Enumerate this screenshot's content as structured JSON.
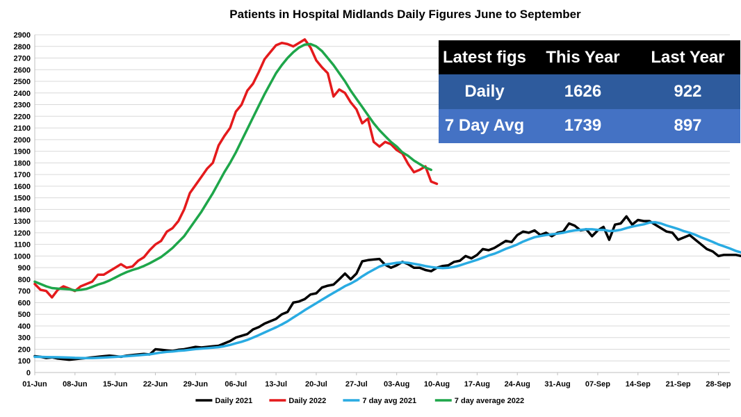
{
  "chart_data": {
    "type": "line",
    "title": "Patients in Hospital  Midlands Daily Figures June to September",
    "ylim": [
      0,
      2900
    ],
    "y_ticks": [
      0,
      100,
      200,
      300,
      400,
      500,
      600,
      700,
      800,
      900,
      1000,
      1100,
      1200,
      1300,
      1400,
      1500,
      1600,
      1700,
      1800,
      1900,
      2000,
      2100,
      2200,
      2300,
      2400,
      2500,
      2600,
      2700,
      2800,
      2900
    ],
    "x_range": [
      0,
      121
    ],
    "x_ticks": [
      {
        "day": 0,
        "label": "01-Jun"
      },
      {
        "day": 7,
        "label": "08-Jun"
      },
      {
        "day": 14,
        "label": "15-Jun"
      },
      {
        "day": 21,
        "label": "22-Jun"
      },
      {
        "day": 28,
        "label": "29-Jun"
      },
      {
        "day": 35,
        "label": "06-Jul"
      },
      {
        "day": 42,
        "label": "13-Jul"
      },
      {
        "day": 49,
        "label": "20-Jul"
      },
      {
        "day": 56,
        "label": "27-Jul"
      },
      {
        "day": 63,
        "label": "03-Aug"
      },
      {
        "day": 70,
        "label": "10-Aug"
      },
      {
        "day": 77,
        "label": "17-Aug"
      },
      {
        "day": 84,
        "label": "24-Aug"
      },
      {
        "day": 91,
        "label": "31-Aug"
      },
      {
        "day": 98,
        "label": "07-Sep"
      },
      {
        "day": 105,
        "label": "14-Sep"
      },
      {
        "day": 112,
        "label": "21-Sep"
      },
      {
        "day": 119,
        "label": "28-Sep"
      }
    ],
    "grid": true,
    "legend_position": "bottom",
    "series": [
      {
        "name": "Daily 2021",
        "color": "#000000",
        "start_day": 0,
        "values": [
          140,
          135,
          125,
          130,
          120,
          115,
          110,
          115,
          120,
          125,
          130,
          135,
          140,
          145,
          140,
          135,
          145,
          150,
          155,
          160,
          155,
          200,
          195,
          190,
          185,
          195,
          200,
          210,
          220,
          215,
          220,
          225,
          230,
          250,
          270,
          300,
          315,
          330,
          370,
          390,
          420,
          440,
          460,
          500,
          520,
          600,
          610,
          630,
          670,
          680,
          730,
          745,
          755,
          800,
          850,
          800,
          850,
          955,
          965,
          970,
          975,
          925,
          900,
          920,
          950,
          930,
          900,
          900,
          880,
          870,
          900,
          915,
          920,
          950,
          960,
          1000,
          980,
          1010,
          1060,
          1050,
          1070,
          1100,
          1130,
          1120,
          1180,
          1210,
          1200,
          1220,
          1180,
          1200,
          1170,
          1200,
          1210,
          1280,
          1260,
          1220,
          1230,
          1170,
          1220,
          1250,
          1140,
          1270,
          1280,
          1340,
          1270,
          1310,
          1300,
          1300,
          1270,
          1240,
          1210,
          1200,
          1140,
          1160,
          1180,
          1140,
          1100,
          1060,
          1040,
          1000,
          1010,
          1010,
          1010,
          1000,
          960
        ]
      },
      {
        "name": "Daily 2022",
        "color": "#e41a1c",
        "start_day": 0,
        "values": [
          760,
          710,
          700,
          645,
          710,
          740,
          720,
          700,
          740,
          760,
          780,
          840,
          840,
          870,
          900,
          930,
          900,
          910,
          960,
          990,
          1050,
          1100,
          1130,
          1210,
          1240,
          1300,
          1400,
          1540,
          1610,
          1680,
          1750,
          1800,
          1950,
          2030,
          2100,
          2240,
          2300,
          2420,
          2480,
          2580,
          2690,
          2750,
          2810,
          2830,
          2820,
          2800,
          2830,
          2860,
          2790,
          2680,
          2620,
          2570,
          2370,
          2430,
          2400,
          2320,
          2260,
          2140,
          2180,
          1980,
          1940,
          1980,
          1960,
          1910,
          1880,
          1790,
          1720,
          1740,
          1770,
          1640,
          1620
        ]
      },
      {
        "name": "7 day avg 2021",
        "color": "#29abe2",
        "start_day": 0,
        "values": [
          135,
          134,
          133,
          132,
          131,
          130,
          128,
          126,
          125,
          124,
          124,
          126,
          128,
          131,
          134,
          137,
          140,
          144,
          148,
          152,
          156,
          164,
          172,
          177,
          181,
          186,
          190,
          195,
          201,
          205,
          209,
          213,
          218,
          226,
          237,
          251,
          264,
          280,
          300,
          321,
          344,
          366,
          388,
          413,
          440,
          472,
          503,
          535,
          565,
          595,
          625,
          655,
          684,
          712,
          742,
          764,
          791,
          826,
          856,
          883,
          910,
          927,
          934,
          942,
          946,
          942,
          933,
          925,
          914,
          906,
          900,
          897,
          899,
          907,
          920,
          936,
          952,
          968,
          986,
          1005,
          1020,
          1040,
          1062,
          1080,
          1100,
          1124,
          1143,
          1162,
          1172,
          1180,
          1186,
          1192,
          1200,
          1212,
          1220,
          1225,
          1230,
          1230,
          1225,
          1225,
          1215,
          1217,
          1225,
          1240,
          1253,
          1263,
          1272,
          1287,
          1290,
          1280,
          1262,
          1248,
          1232,
          1214,
          1200,
          1182,
          1160,
          1142,
          1122,
          1100,
          1083,
          1065,
          1045,
          1030,
          1017
        ]
      },
      {
        "name": "7 day average 2022",
        "color": "#1ea64a",
        "start_day": 0,
        "values": [
          780,
          760,
          740,
          725,
          720,
          718,
          715,
          705,
          710,
          718,
          735,
          755,
          770,
          790,
          815,
          840,
          862,
          880,
          895,
          915,
          938,
          965,
          992,
          1030,
          1070,
          1120,
          1170,
          1240,
          1310,
          1380,
          1460,
          1540,
          1630,
          1720,
          1800,
          1890,
          1990,
          2090,
          2190,
          2290,
          2390,
          2480,
          2570,
          2640,
          2700,
          2750,
          2790,
          2815,
          2820,
          2800,
          2760,
          2700,
          2640,
          2570,
          2500,
          2420,
          2350,
          2280,
          2210,
          2140,
          2080,
          2030,
          1980,
          1940,
          1890,
          1860,
          1820,
          1790,
          1760,
          1740
        ]
      }
    ]
  },
  "stats_table": {
    "headers": [
      "Latest figs",
      "This Year",
      "Last Year"
    ],
    "rows": [
      {
        "label": "Daily",
        "this_year": "1626",
        "last_year": "922"
      },
      {
        "label": "7 Day Avg",
        "this_year": "1739",
        "last_year": "897"
      }
    ]
  }
}
